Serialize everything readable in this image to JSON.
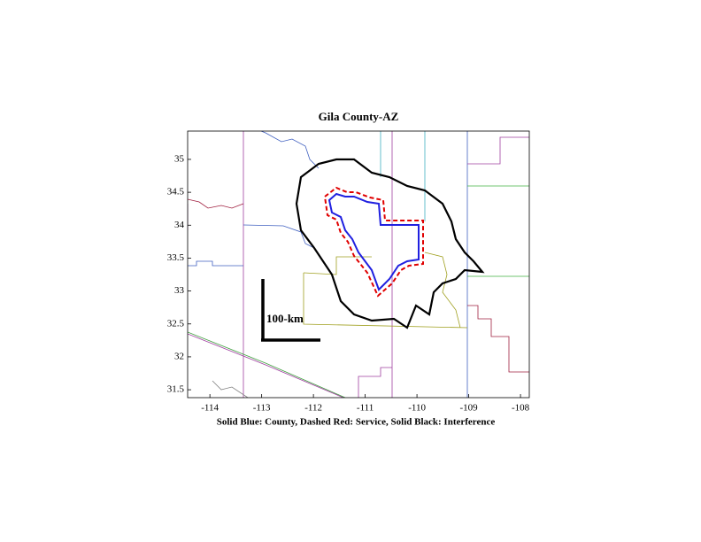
{
  "map": {
    "title": "Gila County-AZ",
    "caption": "Solid Blue: County, Dashed Red: Service, Solid Black: Interference",
    "scale_label": "100-km",
    "xlim": [
      -114.43,
      -107.83
    ],
    "ylim": [
      31.38,
      35.43
    ],
    "xticks": [
      -114,
      -113,
      -112,
      -111,
      -110,
      -109,
      -108
    ],
    "yticks": [
      31.5,
      32,
      32.5,
      33,
      33.5,
      34,
      34.5,
      35
    ]
  }
}
